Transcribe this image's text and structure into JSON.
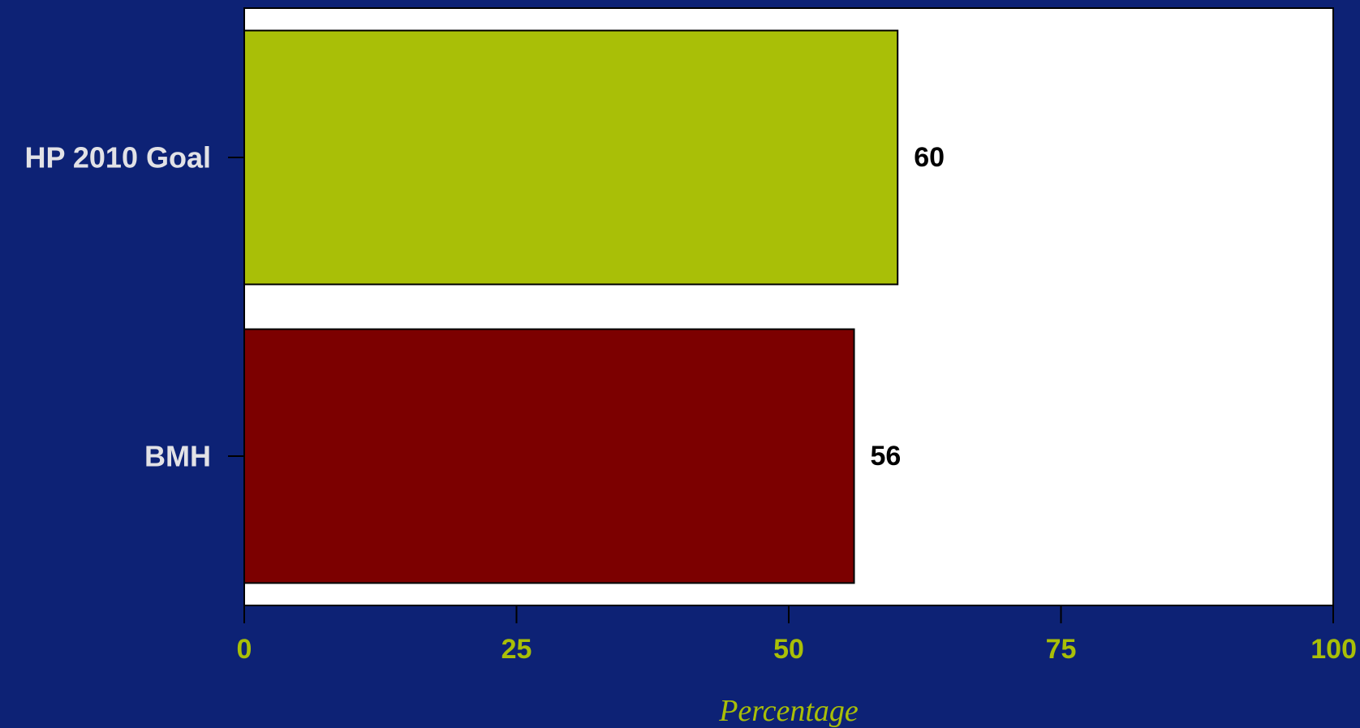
{
  "chart_data": {
    "type": "bar",
    "orientation": "horizontal",
    "categories": [
      "HP 2010 Goal",
      "BMH"
    ],
    "values": [
      60,
      56
    ],
    "value_labels": [
      "60",
      "56"
    ],
    "bar_colors": [
      "#a9bf07",
      "#7c0000"
    ],
    "xlabel": "Percentage",
    "xlim": [
      0,
      100
    ],
    "xticks": [
      0,
      25,
      50,
      75,
      100
    ],
    "xtick_labels": [
      "0",
      "25",
      "50",
      "75",
      "100"
    ],
    "grid": false,
    "colors": {
      "background": "#0d2275",
      "plot_area": "#ffffff",
      "tick_text": "#a9bf07",
      "category_text": "#e2e2e6",
      "value_text": "#000000"
    }
  }
}
